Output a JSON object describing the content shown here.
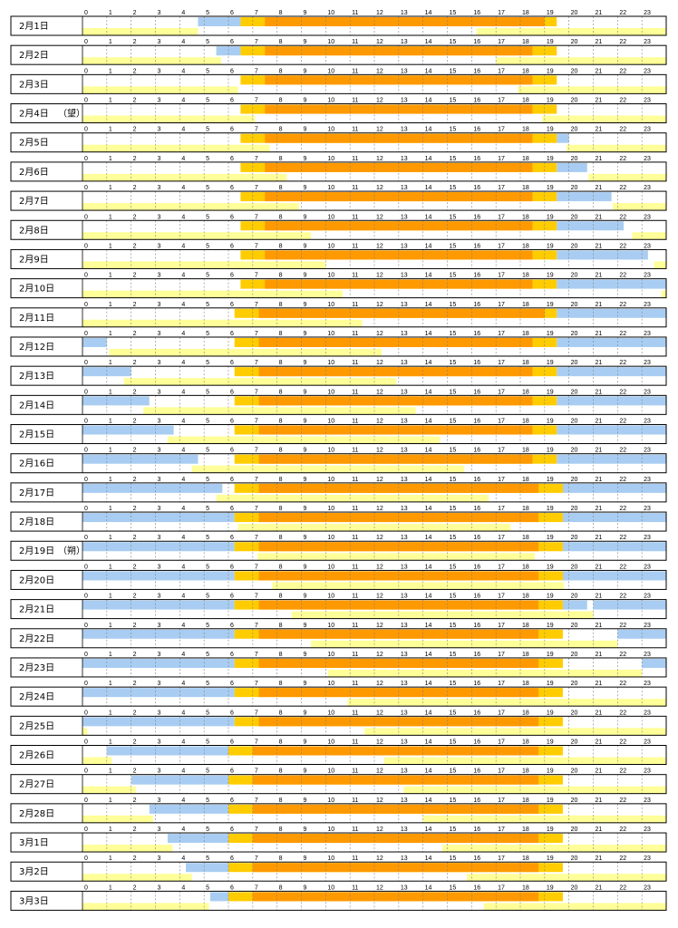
{
  "chart_data": {
    "type": "timeline",
    "hour_ticks": [
      "0",
      "1",
      "2",
      "3",
      "4",
      "5",
      "6",
      "7",
      "8",
      "9",
      "10",
      "11",
      "12",
      "13",
      "14",
      "15",
      "16",
      "17",
      "18",
      "19",
      "20",
      "21",
      "22",
      "23"
    ],
    "x_range_hours": [
      0,
      24
    ],
    "colors": {
      "night_sky": "#a9cdf2",
      "twilight": "#ffcc00",
      "daylight": "#ff9900",
      "moon": "#ffff99",
      "grid": "#808080",
      "border": "#000000"
    },
    "legend_semantics": {
      "night_sky": "moonless dark sky",
      "twilight": "sunrise / sunset band",
      "daylight": "daytime",
      "moon": "moon above horizon"
    },
    "days": [
      {
        "label": "2月1日",
        "sky_dark": [
          [
            4.75,
            6.5
          ]
        ],
        "sun": [
          6.5,
          19.5
        ],
        "daylight": [
          7.5,
          19
        ],
        "moon": [
          [
            0,
            4.75
          ],
          [
            16.2,
            24
          ]
        ]
      },
      {
        "label": "2月2日",
        "sky_dark": [
          [
            5.5,
            6.5
          ]
        ],
        "sun": [
          6.5,
          19.5
        ],
        "daylight": [
          7.5,
          18.5
        ],
        "moon": [
          [
            0,
            5.7
          ],
          [
            17.0,
            24
          ]
        ]
      },
      {
        "label": "2月3日",
        "sky_dark": [],
        "sun": [
          6.5,
          19.5
        ],
        "daylight": [
          7.5,
          18.5
        ],
        "moon": [
          [
            0,
            6.4
          ],
          [
            17.9,
            24
          ]
        ]
      },
      {
        "label": "2月4日",
        "note": "（望）",
        "sky_dark": [],
        "sun": [
          6.5,
          19.5
        ],
        "daylight": [
          7.5,
          18.5
        ],
        "moon": [
          [
            0,
            7.1
          ],
          [
            18.9,
            24
          ]
        ]
      },
      {
        "label": "2月5日",
        "sky_dark": [
          [
            19.5,
            20
          ]
        ],
        "sun": [
          6.5,
          19.5
        ],
        "daylight": [
          7.5,
          18.5
        ],
        "moon": [
          [
            0,
            7.7
          ],
          [
            19.9,
            24
          ]
        ]
      },
      {
        "label": "2月6日",
        "sky_dark": [
          [
            19.5,
            20.75
          ]
        ],
        "sun": [
          6.5,
          19.5
        ],
        "daylight": [
          7.5,
          18.5
        ],
        "moon": [
          [
            0,
            8.4
          ],
          [
            20.8,
            24
          ]
        ]
      },
      {
        "label": "2月7日",
        "sky_dark": [
          [
            19.5,
            21.75
          ]
        ],
        "sun": [
          6.5,
          19.5
        ],
        "daylight": [
          7.5,
          18.5
        ],
        "moon": [
          [
            0,
            8.9
          ],
          [
            21.8,
            24
          ]
        ]
      },
      {
        "label": "2月8日",
        "sky_dark": [
          [
            19.5,
            22.25
          ]
        ],
        "sun": [
          6.5,
          19.5
        ],
        "daylight": [
          7.5,
          18.5
        ],
        "moon": [
          [
            0,
            9.4
          ],
          [
            22.6,
            24
          ]
        ]
      },
      {
        "label": "2月9日",
        "sky_dark": [
          [
            19.5,
            23.25
          ]
        ],
        "sun": [
          6.5,
          19.5
        ],
        "daylight": [
          7.5,
          18.5
        ],
        "moon": [
          [
            0,
            10.0
          ],
          [
            23.5,
            24
          ]
        ]
      },
      {
        "label": "2月10日",
        "sky_dark": [
          [
            19.5,
            24
          ]
        ],
        "sun": [
          6.5,
          19.5
        ],
        "daylight": [
          7.5,
          18.5
        ],
        "moon": [
          [
            0,
            10.7
          ],
          [
            23.8,
            24
          ]
        ]
      },
      {
        "label": "2月11日",
        "sky_dark": [
          [
            19.5,
            24
          ]
        ],
        "sun": [
          6.25,
          19.5
        ],
        "daylight": [
          7.25,
          19
        ],
        "moon": [
          [
            0,
            11.5
          ]
        ]
      },
      {
        "label": "2月12日",
        "sky_dark": [
          [
            0,
            1
          ],
          [
            19.5,
            24
          ]
        ],
        "sun": [
          6.25,
          19.5
        ],
        "daylight": [
          7.25,
          18.5
        ],
        "moon": [
          [
            1.1,
            12.3
          ]
        ]
      },
      {
        "label": "2月13日",
        "sky_dark": [
          [
            0,
            2
          ],
          [
            19.5,
            24
          ]
        ],
        "sun": [
          6.25,
          19.5
        ],
        "daylight": [
          7.25,
          18.5
        ],
        "moon": [
          [
            1.7,
            12.9
          ]
        ]
      },
      {
        "label": "2月14日",
        "sky_dark": [
          [
            0,
            2.75
          ],
          [
            19.5,
            24
          ]
        ],
        "sun": [
          6.25,
          19.5
        ],
        "daylight": [
          7.25,
          18.5
        ],
        "moon": [
          [
            2.5,
            13.7
          ]
        ]
      },
      {
        "label": "2月15日",
        "sky_dark": [
          [
            0,
            3.75
          ],
          [
            19.5,
            24
          ]
        ],
        "sun": [
          6.25,
          19.5
        ],
        "daylight": [
          7.25,
          18.5
        ],
        "moon": [
          [
            3.5,
            14.7
          ]
        ]
      },
      {
        "label": "2月16日",
        "sky_dark": [
          [
            0,
            4.75
          ],
          [
            19.5,
            24
          ]
        ],
        "sun": [
          6.25,
          19.5
        ],
        "daylight": [
          7.25,
          18.5
        ],
        "moon": [
          [
            4.5,
            15.7
          ]
        ]
      },
      {
        "label": "2月17日",
        "sky_dark": [
          [
            0,
            5.75
          ],
          [
            19.75,
            24
          ]
        ],
        "sun": [
          6.25,
          19.75
        ],
        "daylight": [
          7.25,
          18.75
        ],
        "moon": [
          [
            5.5,
            16.7
          ]
        ]
      },
      {
        "label": "2月18日",
        "sky_dark": [
          [
            0,
            6.25
          ],
          [
            19.75,
            24
          ]
        ],
        "sun": [
          6.25,
          19.75
        ],
        "daylight": [
          7.25,
          18.75
        ],
        "moon": [
          [
            6.4,
            17.6
          ]
        ]
      },
      {
        "label": "2月19日",
        "note": "（朔）",
        "sky_dark": [
          [
            0,
            6.25
          ],
          [
            19.75,
            24
          ]
        ],
        "sun": [
          6.25,
          19.75
        ],
        "daylight": [
          7.25,
          18.75
        ],
        "moon": [
          [
            7.2,
            18.6
          ]
        ]
      },
      {
        "label": "2月20日",
        "sky_dark": [
          [
            0,
            6.25
          ],
          [
            19.75,
            24
          ]
        ],
        "sun": [
          6.25,
          19.75
        ],
        "daylight": [
          7.25,
          18.75
        ],
        "moon": [
          [
            7.8,
            19.8
          ]
        ]
      },
      {
        "label": "2月21日",
        "sky_dark": [
          [
            0,
            6.25
          ],
          [
            19.75,
            20.75
          ],
          [
            21.0,
            24
          ]
        ],
        "sun": [
          6.25,
          19.75
        ],
        "daylight": [
          7.25,
          18.75
        ],
        "moon": [
          [
            8.6,
            21.0
          ]
        ]
      },
      {
        "label": "2月22日",
        "sky_dark": [
          [
            0,
            6.25
          ],
          [
            22.0,
            24
          ]
        ],
        "sun": [
          6.25,
          19.75
        ],
        "daylight": [
          7.25,
          18.75
        ],
        "moon": [
          [
            9.4,
            22.0
          ]
        ]
      },
      {
        "label": "2月23日",
        "sky_dark": [
          [
            0,
            6.25
          ],
          [
            23.0,
            24
          ]
        ],
        "sun": [
          6.25,
          19.75
        ],
        "daylight": [
          7.25,
          18.75
        ],
        "moon": [
          [
            10.1,
            23.0
          ]
        ]
      },
      {
        "label": "2月24日",
        "sky_dark": [
          [
            0,
            6.25
          ]
        ],
        "sun": [
          6.25,
          19.75
        ],
        "daylight": [
          7.25,
          18.75
        ],
        "moon": [
          [
            10.9,
            24
          ]
        ]
      },
      {
        "label": "2月25日",
        "sky_dark": [
          [
            0,
            6.25
          ]
        ],
        "sun": [
          6.25,
          19.75
        ],
        "daylight": [
          7.25,
          18.75
        ],
        "moon": [
          [
            0,
            0.2
          ],
          [
            11.6,
            24
          ]
        ]
      },
      {
        "label": "2月26日",
        "sky_dark": [
          [
            1.0,
            6.0
          ]
        ],
        "sun": [
          6.0,
          19.75
        ],
        "daylight": [
          7.0,
          18.75
        ],
        "moon": [
          [
            0,
            1.2
          ],
          [
            12.4,
            24
          ]
        ]
      },
      {
        "label": "2月27日",
        "sky_dark": [
          [
            2.0,
            6.0
          ]
        ],
        "sun": [
          6.0,
          19.75
        ],
        "daylight": [
          7.0,
          18.75
        ],
        "moon": [
          [
            0,
            2.2
          ],
          [
            13.2,
            24
          ]
        ]
      },
      {
        "label": "2月28日",
        "sky_dark": [
          [
            2.75,
            6.0
          ]
        ],
        "sun": [
          6.0,
          19.75
        ],
        "daylight": [
          7.0,
          18.75
        ],
        "moon": [
          [
            0,
            2.9
          ],
          [
            14.0,
            24
          ]
        ]
      },
      {
        "label": "3月1日",
        "sky_dark": [
          [
            3.5,
            6.0
          ]
        ],
        "sun": [
          6.0,
          19.75
        ],
        "daylight": [
          7.0,
          18.75
        ],
        "moon": [
          [
            0,
            3.7
          ],
          [
            14.8,
            24
          ]
        ]
      },
      {
        "label": "3月2日",
        "sky_dark": [
          [
            4.25,
            6.0
          ]
        ],
        "sun": [
          6.0,
          19.75
        ],
        "daylight": [
          7.0,
          18.75
        ],
        "moon": [
          [
            0,
            4.5
          ],
          [
            15.8,
            24
          ]
        ]
      },
      {
        "label": "3月3日",
        "sky_dark": [
          [
            5.25,
            6.0
          ]
        ],
        "sun": [
          6.0,
          19.75
        ],
        "daylight": [
          7.0,
          18.75
        ],
        "moon": [
          [
            0,
            5.2
          ],
          [
            16.5,
            24
          ]
        ]
      }
    ]
  }
}
